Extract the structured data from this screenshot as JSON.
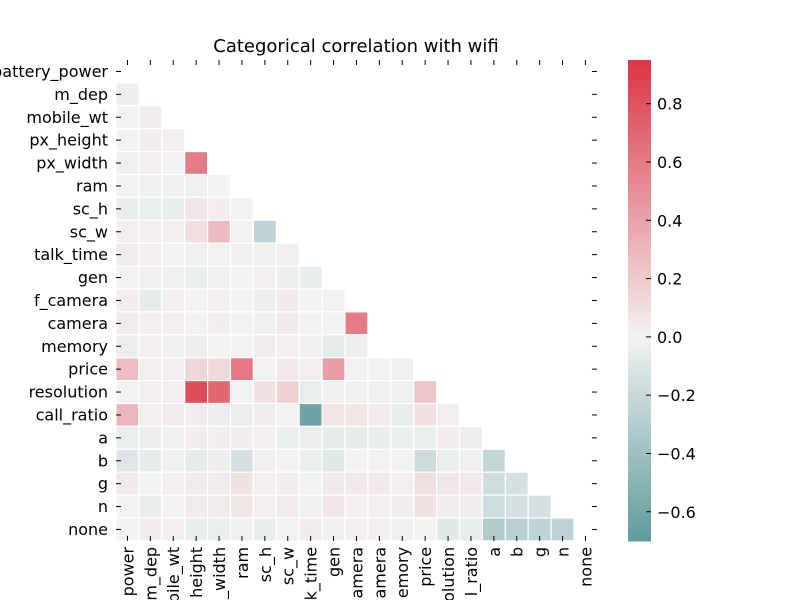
{
  "chart_data": {
    "type": "heatmap",
    "title": "Categorical correlation with wifi",
    "xlabel": "",
    "ylabel": "",
    "row_labels": [
      "battery_power",
      "m_dep",
      "mobile_wt",
      "px_height",
      "px_width",
      "ram",
      "sc_h",
      "sc_w",
      "talk_time",
      "gen",
      "f_camera",
      "camera",
      "memory",
      "price",
      "resolution",
      "call_ratio",
      "a",
      "b",
      "g",
      "n",
      "none"
    ],
    "col_labels": [
      "power",
      "m_dep",
      "bile_wt",
      "height",
      "_width",
      "ram",
      "sc_h",
      "sc_w",
      "k_time",
      "gen",
      "amera",
      "amera",
      "emory",
      "price",
      "olution",
      "l_ratio",
      "a",
      "b",
      "g",
      "n",
      "none"
    ],
    "mask": "upper triangle including diagonal",
    "values": [
      [],
      [
        0.03
      ],
      [
        0.0,
        0.03
      ],
      [
        0.0,
        0.03,
        0.02
      ],
      [
        -0.02,
        0.02,
        0.0,
        0.6
      ],
      [
        0.0,
        -0.02,
        -0.02,
        -0.02,
        0.0
      ],
      [
        -0.05,
        -0.04,
        -0.05,
        0.06,
        0.03,
        0.01
      ],
      [
        0.02,
        0.02,
        0.02,
        0.1,
        0.28,
        0.01,
        -0.25
      ],
      [
        0.04,
        0.02,
        0.0,
        -0.02,
        -0.01,
        0.02,
        -0.02,
        0.02
      ],
      [
        0.0,
        -0.02,
        -0.02,
        -0.04,
        -0.02,
        0.0,
        0.02,
        -0.03,
        -0.05
      ],
      [
        0.03,
        -0.06,
        0.02,
        0.0,
        0.02,
        0.0,
        -0.03,
        0.05,
        0.0,
        0.01
      ],
      [
        0.04,
        0.02,
        0.02,
        -0.01,
        0.03,
        0.01,
        -0.02,
        0.05,
        0.01,
        0.0,
        0.6
      ],
      [
        -0.03,
        0.02,
        -0.02,
        -0.03,
        0.0,
        0.0,
        0.04,
        0.02,
        -0.02,
        -0.06,
        -0.03
      ],
      [
        0.26,
        0.02,
        0.02,
        0.14,
        0.12,
        0.62,
        0.0,
        0.05,
        0.02,
        0.42,
        0.01,
        0.01,
        0.02
      ],
      [
        0.0,
        0.02,
        0.02,
        0.83,
        0.7,
        0.01,
        0.08,
        0.17,
        -0.04,
        -0.02,
        -0.02,
        -0.02,
        -0.02,
        0.22
      ],
      [
        0.3,
        0.02,
        0.04,
        0.03,
        -0.03,
        -0.04,
        0.03,
        0.0,
        -0.63,
        0.07,
        0.07,
        0.04,
        -0.05,
        0.08,
        0.02
      ],
      [
        -0.04,
        -0.03,
        -0.02,
        0.03,
        0.03,
        0.03,
        0.02,
        -0.04,
        -0.03,
        -0.06,
        -0.06,
        -0.05,
        -0.04,
        -0.04,
        0.03,
        -0.03
      ],
      [
        -0.1,
        -0.06,
        -0.02,
        -0.06,
        -0.03,
        -0.15,
        -0.02,
        -0.01,
        -0.04,
        -0.09,
        0.0,
        -0.01,
        -0.01,
        -0.18,
        -0.04,
        -0.02,
        -0.22
      ],
      [
        0.05,
        0.0,
        0.02,
        0.04,
        0.04,
        0.08,
        0.02,
        0.03,
        -0.01,
        0.05,
        0.05,
        0.05,
        0.02,
        0.1,
        0.06,
        0.05,
        -0.17,
        -0.14
      ],
      [
        0.0,
        -0.05,
        0.0,
        0.04,
        0.04,
        0.07,
        0.02,
        0.04,
        -0.02,
        0.06,
        0.02,
        0.02,
        0.03,
        0.08,
        0.03,
        0.03,
        -0.17,
        -0.14,
        -0.14
      ],
      [
        0.0,
        0.03,
        0.02,
        -0.05,
        -0.04,
        -0.02,
        -0.05,
        0.01,
        0.04,
        -0.02,
        0.02,
        0.02,
        -0.02,
        0.0,
        -0.08,
        -0.05,
        -0.32,
        -0.27,
        -0.25,
        -0.25
      ]
    ],
    "colorbar": {
      "vmin": -0.7,
      "vmax": 0.95,
      "ticks": [
        0.8,
        0.6,
        0.4,
        0.2,
        0.0,
        -0.2,
        -0.4,
        -0.6
      ],
      "tick_labels": [
        "0.8",
        "0.6",
        "0.4",
        "0.2",
        "0.0",
        "−0.2",
        "−0.4",
        "−0.6"
      ],
      "neg_color": "#5f9b9c",
      "mid_color": "#f2f2f2",
      "pos_color": "#dc3545"
    },
    "grid": false,
    "legend": "colorbar right"
  }
}
